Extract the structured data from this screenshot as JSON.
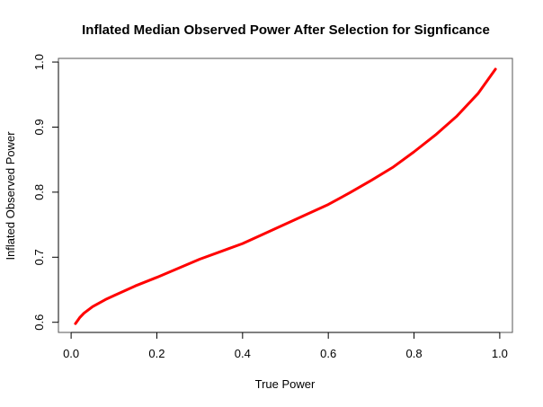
{
  "chart_data": {
    "type": "line",
    "title": "Inflated Median Observed Power After Selection for Signficance",
    "xlabel": "True Power",
    "ylabel": "Inflated Observed Power",
    "xlim": [
      -0.0296,
      1.0296
    ],
    "ylim": [
      0.5844,
      1.0056
    ],
    "xticks": [
      "0.0",
      "0.2",
      "0.4",
      "0.6",
      "0.8",
      "1.0"
    ],
    "yticks": [
      "0.6",
      "0.7",
      "0.8",
      "0.9",
      "1.0"
    ],
    "grid": false,
    "series": [
      {
        "color": "#ff0000",
        "x": [
          0.01,
          0.02,
          0.03,
          0.05,
          0.08,
          0.1,
          0.15,
          0.2,
          0.25,
          0.3,
          0.35,
          0.4,
          0.45,
          0.5,
          0.55,
          0.6,
          0.65,
          0.7,
          0.75,
          0.8,
          0.85,
          0.9,
          0.95,
          0.99
        ],
        "y": [
          0.598,
          0.607,
          0.614,
          0.624,
          0.635,
          0.641,
          0.656,
          0.669,
          0.683,
          0.697,
          0.709,
          0.721,
          0.736,
          0.751,
          0.766,
          0.781,
          0.799,
          0.818,
          0.838,
          0.862,
          0.888,
          0.917,
          0.952,
          0.989
        ]
      }
    ]
  }
}
